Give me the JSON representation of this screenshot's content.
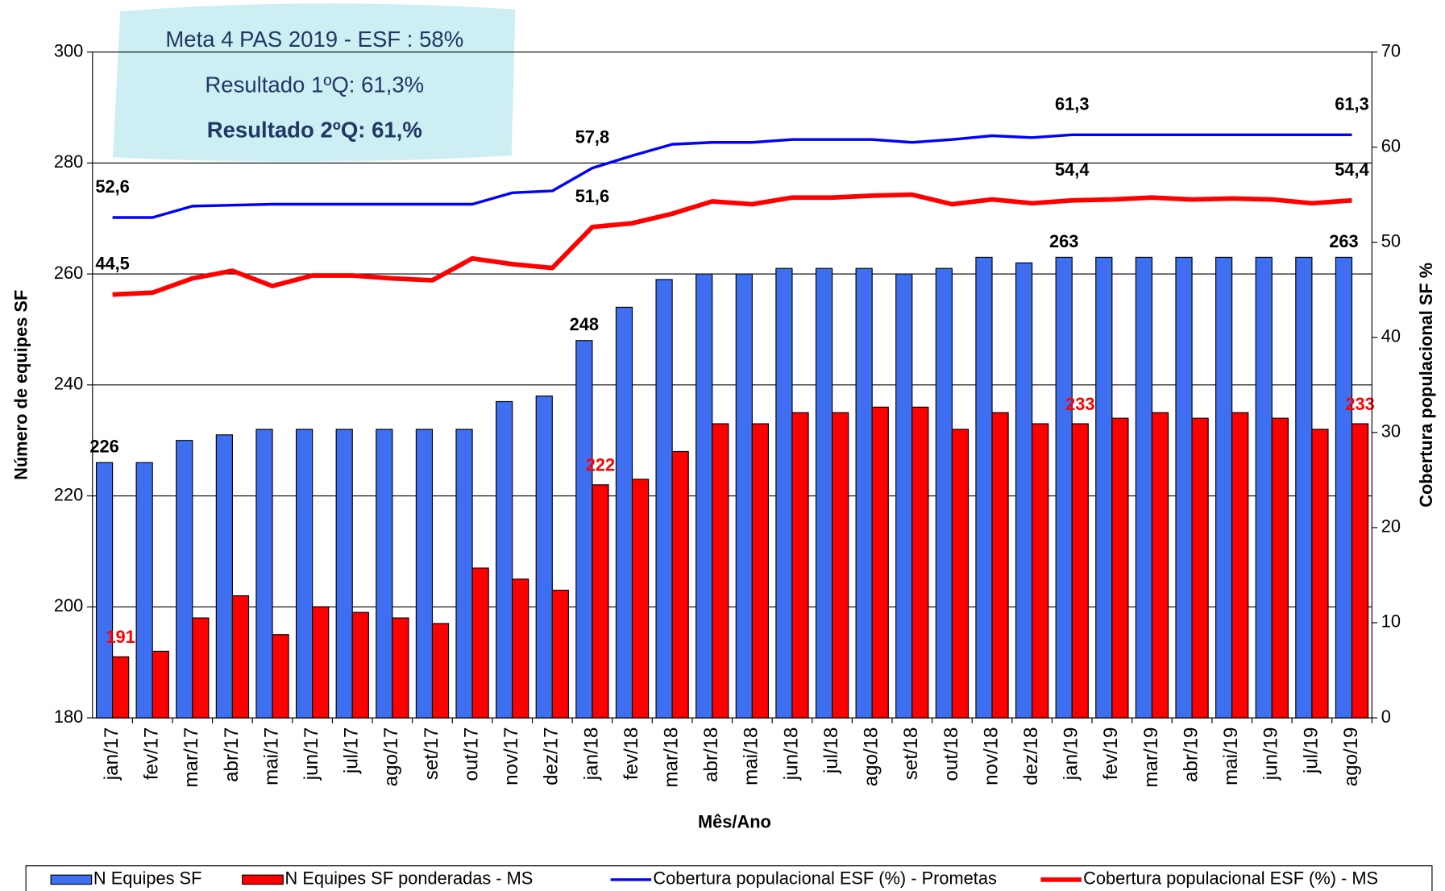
{
  "chart_data": {
    "type": "bar",
    "annotations": [
      "Meta 4 PAS 2019 - ESF : 58%",
      "Resultado 1ºQ:  61,3%",
      "Resultado 2ºQ:  61,%"
    ],
    "x_label": "Mês/Ano",
    "y_label": "Número de equipes SF",
    "y2_label": "Cobertura populacional SF %",
    "categories": [
      "jan/17",
      "fev/17",
      "mar/17",
      "abr/17",
      "mai/17",
      "jun/17",
      "jul/17",
      "ago/17",
      "set/17",
      "out/17",
      "nov/17",
      "dez/17",
      "jan/18",
      "fev/18",
      "mar/18",
      "abr/18",
      "mai/18",
      "jun/18",
      "jul/18",
      "ago/18",
      "set/18",
      "out/18",
      "nov/18",
      "dez/18",
      "jan/19",
      "fev/19",
      "mar/19",
      "abr/19",
      "mai/19",
      "jun/19",
      "jul/19",
      "ago/19"
    ],
    "ylim": [
      180,
      300
    ],
    "yticks": [
      180,
      200,
      220,
      240,
      260,
      280,
      300
    ],
    "y2lim": [
      0,
      70
    ],
    "y2ticks": [
      0,
      10,
      20,
      30,
      40,
      50,
      60,
      70
    ],
    "grid": true,
    "legend": "bottom",
    "series": [
      {
        "name": "N Equipes SF",
        "type": "bar",
        "color": "#3d6ff0",
        "values": [
          226,
          226,
          230,
          231,
          232,
          232,
          232,
          232,
          232,
          232,
          237,
          238,
          248,
          254,
          259,
          260,
          260,
          261,
          261,
          261,
          260,
          261,
          263,
          262,
          263,
          263,
          263,
          263,
          263,
          263,
          263,
          263
        ],
        "value_labels": [
          "226",
          null,
          null,
          null,
          null,
          null,
          null,
          null,
          null,
          null,
          null,
          null,
          "248",
          null,
          null,
          null,
          null,
          null,
          null,
          null,
          null,
          null,
          null,
          null,
          "263",
          null,
          null,
          null,
          null,
          null,
          null,
          "263"
        ],
        "label_color": "#000000"
      },
      {
        "name": "N Equipes SF ponderadas - MS",
        "type": "bar",
        "color": "#ff0000",
        "values": [
          191,
          192,
          198,
          202,
          195,
          200,
          199,
          198,
          197,
          207,
          205,
          203,
          222,
          223,
          228,
          233,
          233,
          235,
          235,
          236,
          236,
          232,
          235,
          233,
          233,
          234,
          235,
          234,
          235,
          234,
          232,
          233
        ],
        "value_labels": [
          "191",
          null,
          null,
          null,
          null,
          null,
          null,
          null,
          null,
          null,
          null,
          null,
          "222",
          null,
          null,
          null,
          null,
          null,
          null,
          null,
          null,
          null,
          null,
          null,
          "233",
          null,
          null,
          null,
          null,
          null,
          null,
          "233"
        ],
        "label_color": "#ff0000"
      },
      {
        "name": "Cobertura populacional ESF (%) - Prometas",
        "type": "line",
        "axis": "y2",
        "color": "#0000ff",
        "values": [
          52.6,
          52.6,
          53.8,
          53.9,
          54.0,
          54.0,
          54.0,
          54.0,
          54.0,
          54.0,
          55.2,
          55.4,
          57.8,
          59.1,
          60.3,
          60.5,
          60.5,
          60.8,
          60.8,
          60.8,
          60.5,
          60.8,
          61.2,
          61.0,
          61.3,
          61.3,
          61.3,
          61.3,
          61.3,
          61.3,
          61.3,
          61.3
        ],
        "value_labels": [
          "52,6",
          null,
          null,
          null,
          null,
          null,
          null,
          null,
          null,
          null,
          null,
          null,
          "57,8",
          null,
          null,
          null,
          null,
          null,
          null,
          null,
          null,
          null,
          null,
          null,
          "61,3",
          null,
          null,
          null,
          null,
          null,
          null,
          "61,3"
        ],
        "label_color": "#000000"
      },
      {
        "name": "Cobertura populacional ESF (%) - MS",
        "type": "line",
        "axis": "y2",
        "color": "#ff0000",
        "values": [
          44.5,
          44.7,
          46.2,
          47.0,
          45.4,
          46.5,
          46.5,
          46.2,
          46.0,
          48.3,
          47.7,
          47.3,
          51.6,
          52.0,
          53.0,
          54.3,
          54.0,
          54.7,
          54.7,
          54.9,
          55.0,
          54.0,
          54.5,
          54.1,
          54.4,
          54.5,
          54.7,
          54.5,
          54.6,
          54.5,
          54.1,
          54.4
        ],
        "value_labels": [
          "44,5",
          null,
          null,
          null,
          null,
          null,
          null,
          null,
          null,
          null,
          null,
          null,
          "51,6",
          null,
          null,
          null,
          null,
          null,
          null,
          null,
          null,
          null,
          null,
          null,
          "54,4",
          null,
          null,
          null,
          null,
          null,
          null,
          "54,4"
        ],
        "label_color": "#000000"
      }
    ]
  }
}
